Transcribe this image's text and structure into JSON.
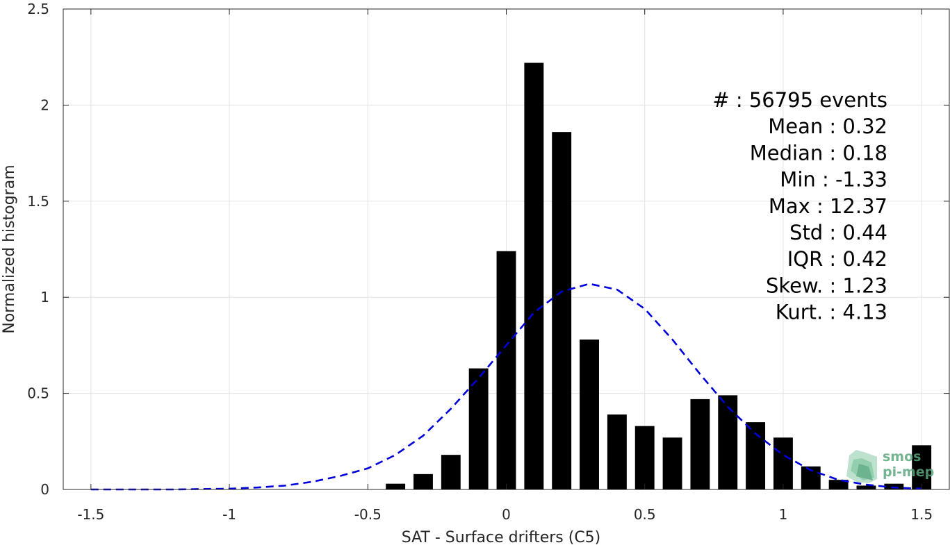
{
  "chart_data": {
    "type": "bar",
    "title": "",
    "xlabel": "SAT - Surface drifters (C5)",
    "ylabel": "Normalized histogram",
    "xlim": [
      -1.6,
      1.6
    ],
    "ylim": [
      0,
      2.5
    ],
    "xticks": [
      -1.5,
      -1,
      -0.5,
      0,
      0.5,
      1,
      1.5
    ],
    "xtick_labels": [
      "-1.5",
      "-1",
      "-0.5",
      "0",
      "0.5",
      "1",
      "1.5"
    ],
    "yticks": [
      0,
      0.5,
      1,
      1.5,
      2,
      2.5
    ],
    "ytick_labels": [
      "0",
      "0.5",
      "1",
      "1.5",
      "2",
      "2.5"
    ],
    "grid": true,
    "bar_width": 0.07,
    "series": [
      {
        "type": "bar",
        "color": "#000000",
        "x": [
          -1.5,
          -1.4,
          -1.3,
          -1.2,
          -1.1,
          -1.0,
          -0.9,
          -0.8,
          -0.7,
          -0.6,
          -0.5,
          -0.4,
          -0.3,
          -0.2,
          -0.1,
          0.0,
          0.1,
          0.2,
          0.3,
          0.4,
          0.5,
          0.6,
          0.7,
          0.8,
          0.9,
          1.0,
          1.1,
          1.2,
          1.3,
          1.4,
          1.5
        ],
        "values": [
          0,
          0,
          0,
          0,
          0,
          0,
          0,
          0,
          0,
          0,
          0,
          0.03,
          0.08,
          0.18,
          0.63,
          1.24,
          2.22,
          1.86,
          0.78,
          0.39,
          0.33,
          0.27,
          0.47,
          0.49,
          0.35,
          0.27,
          0.12,
          0.05,
          0.02,
          0.03,
          0.23
        ]
      },
      {
        "type": "line",
        "style": "dashed",
        "color": "#0000dd",
        "x": [
          -1.5,
          -1.4,
          -1.3,
          -1.2,
          -1.1,
          -1.0,
          -0.9,
          -0.8,
          -0.7,
          -0.6,
          -0.5,
          -0.4,
          -0.3,
          -0.2,
          -0.1,
          0.0,
          0.1,
          0.2,
          0.3,
          0.4,
          0.5,
          0.6,
          0.7,
          0.8,
          0.9,
          1.0,
          1.1,
          1.2,
          1.3,
          1.4,
          1.5
        ],
        "values": [
          0.0,
          0.0,
          0.0,
          0.0,
          0.002,
          0.004,
          0.01,
          0.02,
          0.04,
          0.07,
          0.11,
          0.18,
          0.28,
          0.42,
          0.58,
          0.75,
          0.92,
          1.03,
          1.07,
          1.04,
          0.94,
          0.78,
          0.6,
          0.43,
          0.29,
          0.18,
          0.1,
          0.05,
          0.025,
          0.01,
          0.004
        ]
      }
    ],
    "annotations": [
      "#  : 56795 events",
      "Mean : 0.32",
      "Median : 0.18",
      "Min : -1.33",
      "Max : 12.37",
      "Std : 0.44",
      "IQR : 0.42",
      "Skew. : 1.23",
      "Kurt. : 4.13"
    ]
  },
  "logo": {
    "line1": "smos",
    "line2": "pi-mep",
    "color": "#5aa77c"
  }
}
